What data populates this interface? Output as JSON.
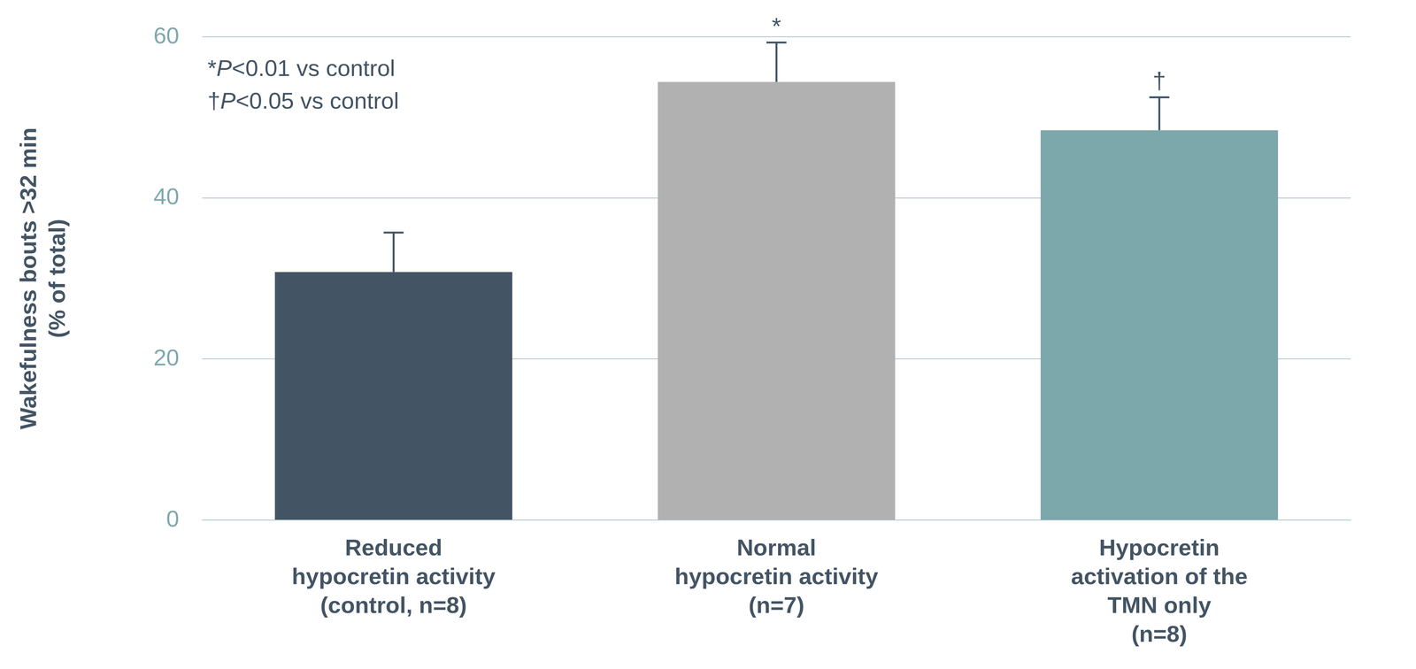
{
  "chart_data": {
    "type": "bar",
    "categories": [
      [
        "Reduced",
        "hypocretin activity",
        "(control, n=8)"
      ],
      [
        "Normal",
        "hypocretin activity",
        "(n=7)"
      ],
      [
        "Hypocretin",
        "activation of the",
        "TMN only",
        "(n=8)"
      ]
    ],
    "values": [
      30.8,
      54.4,
      48.4
    ],
    "errors": [
      4.9,
      4.9,
      4.1
    ],
    "colors": [
      "#435464",
      "#b1b1b1",
      "#7ca7ab"
    ],
    "y_label": [
      "Wakefulness bouts >32 min",
      "(% of total)"
    ],
    "ylim": [
      0,
      60
    ],
    "yticks": [
      0,
      20,
      40,
      60
    ],
    "grid": true,
    "markers": [
      null,
      "*",
      "†"
    ],
    "annotations": [
      "*P<0.01 vs control",
      "†P<0.05 vs control"
    ]
  }
}
